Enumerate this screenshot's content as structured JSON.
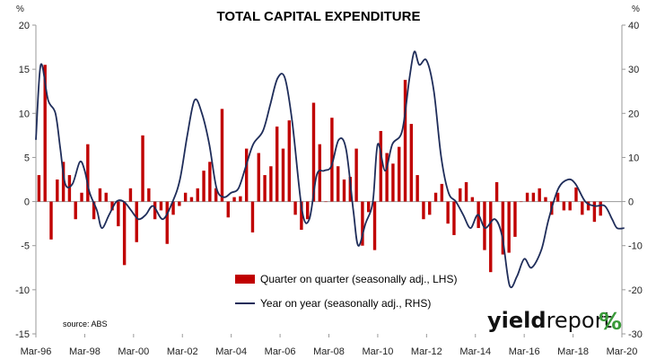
{
  "chart_data": {
    "type": "bar+line",
    "title": "TOTAL CAPITAL EXPENDITURE",
    "left_unit": "%",
    "right_unit": "%",
    "x_tick_labels": [
      "Mar-96",
      "Mar-98",
      "Mar-00",
      "Mar-02",
      "Mar-04",
      "Mar-06",
      "Mar-08",
      "Mar-10",
      "Mar-12",
      "Mar-14",
      "Mar-16",
      "Mar-18",
      "Mar-20"
    ],
    "x_range": [
      1996,
      2020
    ],
    "ylim_left": [
      -15,
      20
    ],
    "yticks_left": [
      -15,
      -10,
      -5,
      0,
      5,
      10,
      15,
      20
    ],
    "ylim_right": [
      -30,
      40
    ],
    "yticks_right": [
      -30,
      -20,
      -10,
      0,
      10,
      20,
      30,
      40
    ],
    "legend_position": "bottom-center",
    "grid": false,
    "colors": {
      "bars": "#c00000",
      "line": "#1f2d5a",
      "pct_green": "#3a9a3a",
      "pct_red": "#c00000"
    },
    "series": [
      {
        "name": "Quarter on quarter (seasonally adj., LHS)",
        "kind": "bar",
        "axis": "left",
        "start": 1996.0,
        "step": 0.25,
        "values": [
          3.0,
          15.5,
          -4.3,
          2.5,
          4.5,
          3.0,
          -2.0,
          1.0,
          6.5,
          -2.0,
          1.5,
          1.0,
          -1.0,
          -2.8,
          -7.2,
          1.5,
          -4.6,
          7.5,
          1.5,
          -2.0,
          -1.0,
          -4.8,
          -1.5,
          -0.5,
          1.0,
          0.5,
          1.5,
          3.5,
          4.5,
          1.5,
          10.5,
          -1.8,
          0.5,
          0.6,
          6.0,
          -3.5,
          5.5,
          3.0,
          4.0,
          8.5,
          6.0,
          9.2,
          -1.5,
          -3.2,
          -2.0,
          11.2,
          6.5,
          0.0,
          9.5,
          4.0,
          2.5,
          2.8,
          6.0,
          -5.0,
          -1.2,
          -5.5,
          8.0,
          5.5,
          4.3,
          6.2,
          13.8,
          8.8,
          3.0,
          -2.0,
          -1.5,
          1.0,
          2.0,
          -2.5,
          -3.8,
          1.5,
          2.2,
          0.5,
          -3.0,
          -5.5,
          -8.0,
          2.2,
          -6.0,
          -5.8,
          -4.0,
          0.0,
          1.0,
          1.0,
          1.5,
          0.5,
          -1.5,
          1.0,
          -1.0,
          -1.0,
          1.6,
          -1.5,
          -1.0,
          -2.3,
          -1.6
        ]
      },
      {
        "name": "Year on year (seasonally adj., RHS)",
        "kind": "line",
        "axis": "right",
        "points": [
          [
            1996.0,
            14
          ],
          [
            1996.2,
            31
          ],
          [
            1996.5,
            23
          ],
          [
            1996.8,
            20
          ],
          [
            1997.0,
            12
          ],
          [
            1997.2,
            4
          ],
          [
            1997.5,
            4
          ],
          [
            1997.8,
            9
          ],
          [
            1998.0,
            7
          ],
          [
            1998.2,
            2
          ],
          [
            1998.5,
            -2
          ],
          [
            1998.7,
            -6
          ],
          [
            1999.0,
            -3
          ],
          [
            1999.3,
            0
          ],
          [
            1999.6,
            0
          ],
          [
            1999.9,
            -2
          ],
          [
            2000.2,
            -4
          ],
          [
            2000.5,
            -3
          ],
          [
            2000.8,
            -1
          ],
          [
            2001.2,
            -4
          ],
          [
            2001.6,
            0
          ],
          [
            2001.9,
            5
          ],
          [
            2002.2,
            15
          ],
          [
            2002.5,
            23
          ],
          [
            2002.8,
            20
          ],
          [
            2003.1,
            13
          ],
          [
            2003.4,
            3
          ],
          [
            2003.7,
            1
          ],
          [
            2004.0,
            2
          ],
          [
            2004.3,
            3
          ],
          [
            2004.6,
            8
          ],
          [
            2004.9,
            13
          ],
          [
            2005.3,
            16
          ],
          [
            2005.6,
            22
          ],
          [
            2005.9,
            28
          ],
          [
            2006.2,
            28
          ],
          [
            2006.5,
            18
          ],
          [
            2006.9,
            -2
          ],
          [
            2007.2,
            -4
          ],
          [
            2007.5,
            6
          ],
          [
            2007.8,
            7
          ],
          [
            2008.1,
            8
          ],
          [
            2008.4,
            14
          ],
          [
            2008.7,
            12
          ],
          [
            2009.0,
            -2
          ],
          [
            2009.2,
            -10
          ],
          [
            2009.5,
            -5
          ],
          [
            2009.8,
            0
          ],
          [
            2010.0,
            13
          ],
          [
            2010.3,
            7
          ],
          [
            2010.6,
            13
          ],
          [
            2011.0,
            16
          ],
          [
            2011.3,
            28
          ],
          [
            2011.5,
            34
          ],
          [
            2011.7,
            31
          ],
          [
            2012.0,
            32
          ],
          [
            2012.3,
            25
          ],
          [
            2012.6,
            10
          ],
          [
            2012.9,
            2
          ],
          [
            2013.2,
            0
          ],
          [
            2013.5,
            -3
          ],
          [
            2013.8,
            -6
          ],
          [
            2014.1,
            -3
          ],
          [
            2014.4,
            -6
          ],
          [
            2014.8,
            -4
          ],
          [
            2015.1,
            -8
          ],
          [
            2015.4,
            -19
          ],
          [
            2015.7,
            -17
          ],
          [
            2016.0,
            -13
          ],
          [
            2016.3,
            -15
          ],
          [
            2016.7,
            -11
          ],
          [
            2017.0,
            -4
          ],
          [
            2017.4,
            3
          ],
          [
            2017.8,
            5
          ],
          [
            2018.1,
            4
          ],
          [
            2018.5,
            0
          ],
          [
            2018.9,
            -1
          ],
          [
            2019.3,
            -1
          ],
          [
            2019.6,
            -4
          ],
          [
            2019.8,
            -6
          ],
          [
            2020.1,
            -6
          ]
        ]
      }
    ],
    "source": "source: ABS",
    "brand": {
      "bold": "yield",
      "light": "report",
      "pct": "%"
    }
  }
}
